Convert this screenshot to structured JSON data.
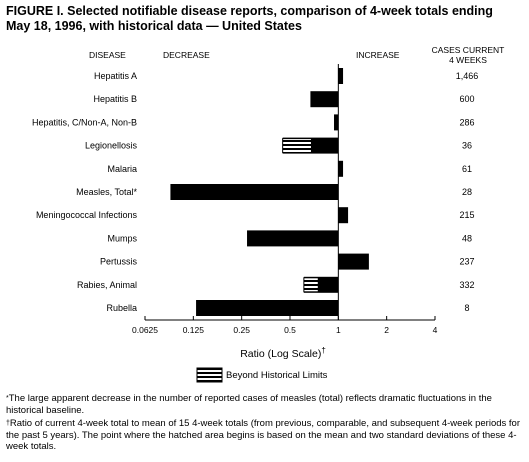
{
  "title_line1": "FIGURE I. Selected notifiable disease reports, comparison of 4-week totals ending",
  "title_line2": "May 18, 1996, with historical data — United States",
  "headers": {
    "disease": "DISEASE",
    "decrease": "DECREASE",
    "increase": "INCREASE",
    "cases_line1": "CASES CURRENT",
    "cases_line2": "4 WEEKS"
  },
  "legend": {
    "label": "Beyond Historical Limits"
  },
  "footnotes": [
    {
      "mark": "*",
      "text": "The large apparent decrease in the number of reported cases of measles (total) reflects dramatic fluctuations in the historical baseline."
    },
    {
      "mark": "†",
      "text": "Ratio of current 4-week total to mean of 15 4-week totals (from previous, comparable, and subsequent 4-week periods for the past 5 years). The point where the hatched area begins is based on the mean and two standard deviations of these 4-week totals."
    }
  ],
  "chart_data": {
    "type": "bar",
    "orientation": "horizontal",
    "xscale": "log2",
    "xlabel": "Ratio (Log Scale)",
    "xlabel_mark": "†",
    "xlim": [
      0.0625,
      4
    ],
    "xticks": [
      "0.0625",
      "0.125",
      "0.25",
      "0.5",
      "1",
      "2",
      "4"
    ],
    "xtick_values": [
      0.0625,
      0.125,
      0.25,
      0.5,
      1,
      2,
      4
    ],
    "baseline": 1,
    "categories": [
      "Hepatitis A",
      "Hepatitis B",
      "Hepatitis, C/Non-A, Non-B",
      "Legionellosis",
      "Malaria",
      "Measles, Total*",
      "Meningococcal Infections",
      "Mumps",
      "Pertussis",
      "Rabies, Animal",
      "Rubella"
    ],
    "values": [
      1.07,
      0.67,
      0.94,
      0.45,
      1.07,
      0.09,
      1.15,
      0.27,
      1.55,
      0.61,
      0.13
    ],
    "hatched_from": [
      null,
      null,
      null,
      0.68,
      null,
      null,
      null,
      null,
      null,
      0.75,
      null
    ],
    "cases": [
      "1,466",
      "600",
      "286",
      "36",
      "61",
      "28",
      "215",
      "48",
      "237",
      "332",
      "8"
    ]
  }
}
